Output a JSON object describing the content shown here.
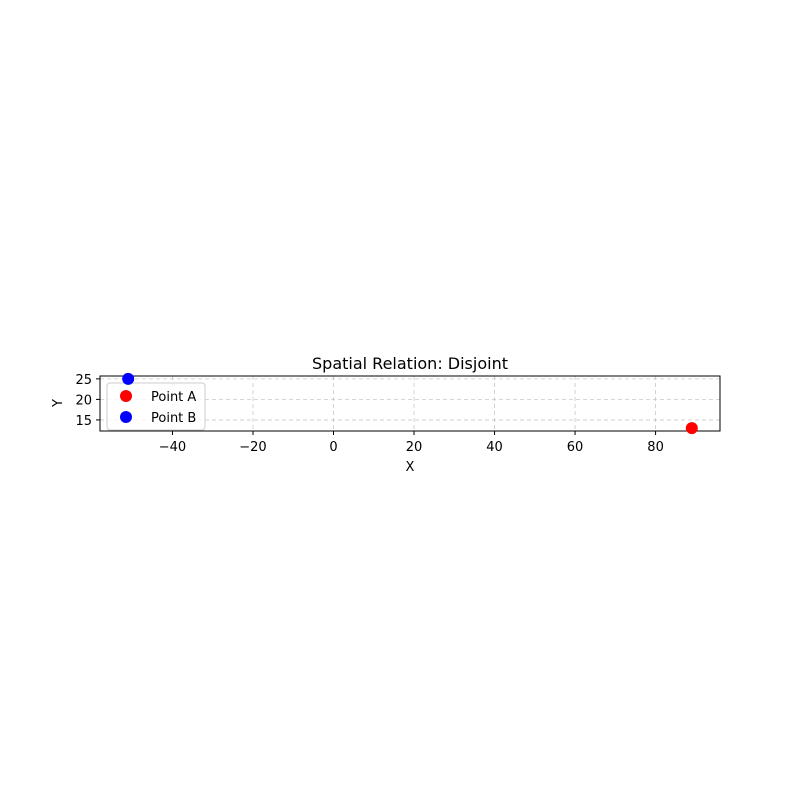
{
  "chart_data": {
    "type": "scatter",
    "title": "Spatial Relation: Disjoint",
    "xlabel": "X",
    "ylabel": "Y",
    "xlim": [
      -58,
      96
    ],
    "ylim": [
      12.3,
      25.7
    ],
    "xticks": [
      -40,
      -20,
      0,
      20,
      40,
      60,
      80
    ],
    "xtick_labels": [
      "−40",
      "−20",
      "0",
      "20",
      "40",
      "60",
      "80"
    ],
    "yticks": [
      15,
      20,
      25
    ],
    "ytick_labels": [
      "15",
      "20",
      "25"
    ],
    "grid": true,
    "legend_position": "upper-left",
    "series": [
      {
        "name": "Point A",
        "color": "#ff0000",
        "x": [
          89
        ],
        "y": [
          13
        ]
      },
      {
        "name": "Point B",
        "color": "#0000ff",
        "x": [
          -51
        ],
        "y": [
          25
        ]
      }
    ]
  }
}
